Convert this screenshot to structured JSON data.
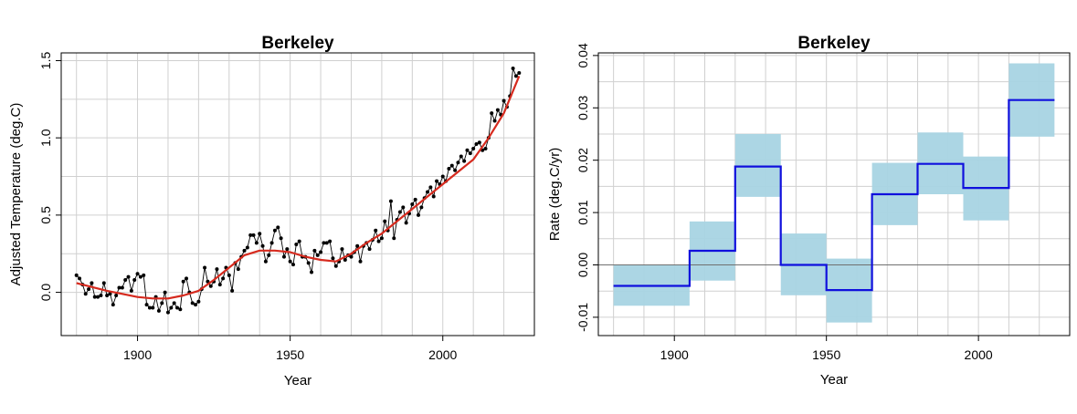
{
  "chart_data": [
    {
      "type": "line",
      "title": "Berkeley",
      "xlabel": "Year",
      "ylabel": "Adjusted Temperature (deg.C)",
      "xlim": [
        1875,
        2030
      ],
      "ylim": [
        -0.28,
        1.55
      ],
      "xticks": [
        1900,
        1950,
        2000
      ],
      "yticks": [
        0.0,
        0.5,
        1.0,
        1.5
      ],
      "xtick_labels": [
        "1900",
        "1950",
        "2000"
      ],
      "ytick_labels": [
        "0.0",
        "0.5",
        "1.0",
        "1.5"
      ],
      "grid": true,
      "colors": {
        "annual": "#000000",
        "trend": "#d62a1e"
      },
      "series": [
        {
          "style": "line-with-points",
          "x": [
            1880,
            1881,
            1882,
            1883,
            1884,
            1885,
            1886,
            1887,
            1888,
            1889,
            1890,
            1891,
            1892,
            1893,
            1894,
            1895,
            1896,
            1897,
            1898,
            1899,
            1900,
            1901,
            1902,
            1903,
            1904,
            1905,
            1906,
            1907,
            1908,
            1909,
            1910,
            1911,
            1912,
            1913,
            1914,
            1915,
            1916,
            1917,
            1918,
            1919,
            1920,
            1921,
            1922,
            1923,
            1924,
            1925,
            1926,
            1927,
            1928,
            1929,
            1930,
            1931,
            1932,
            1933,
            1934,
            1935,
            1936,
            1937,
            1938,
            1939,
            1940,
            1941,
            1942,
            1943,
            1944,
            1945,
            1946,
            1947,
            1948,
            1949,
            1950,
            1951,
            1952,
            1953,
            1954,
            1955,
            1956,
            1957,
            1958,
            1959,
            1960,
            1961,
            1962,
            1963,
            1964,
            1965,
            1966,
            1967,
            1968,
            1969,
            1970,
            1971,
            1972,
            1973,
            1974,
            1975,
            1976,
            1977,
            1978,
            1979,
            1980,
            1981,
            1982,
            1983,
            1984,
            1985,
            1986,
            1987,
            1988,
            1989,
            1990,
            1991,
            1992,
            1993,
            1994,
            1995,
            1996,
            1997,
            1998,
            1999,
            2000,
            2001,
            2002,
            2003,
            2004,
            2005,
            2006,
            2007,
            2008,
            2009,
            2010,
            2011,
            2012,
            2013,
            2014,
            2015,
            2016,
            2017,
            2018,
            2019,
            2020,
            2021,
            2022,
            2023,
            2024,
            2025
          ],
          "y": [
            0.11,
            0.09,
            0.05,
            -0.01,
            0.02,
            0.06,
            -0.03,
            -0.03,
            -0.02,
            0.06,
            -0.02,
            -0.01,
            -0.08,
            -0.02,
            0.03,
            0.03,
            0.08,
            0.1,
            0.01,
            0.08,
            0.12,
            0.1,
            0.11,
            -0.08,
            -0.1,
            -0.1,
            -0.03,
            -0.12,
            -0.07,
            0.0,
            -0.13,
            -0.1,
            -0.07,
            -0.1,
            -0.11,
            0.07,
            0.09,
            0.0,
            -0.07,
            -0.08,
            -0.06,
            0.02,
            0.16,
            0.07,
            0.04,
            0.07,
            0.15,
            0.05,
            0.09,
            0.16,
            0.11,
            0.01,
            0.19,
            0.15,
            0.23,
            0.27,
            0.29,
            0.37,
            0.37,
            0.32,
            0.38,
            0.3,
            0.2,
            0.24,
            0.32,
            0.4,
            0.42,
            0.35,
            0.23,
            0.28,
            0.2,
            0.18,
            0.31,
            0.33,
            0.23,
            0.23,
            0.19,
            0.13,
            0.27,
            0.24,
            0.26,
            0.32,
            0.32,
            0.33,
            0.22,
            0.17,
            0.2,
            0.28,
            0.21,
            0.24,
            0.23,
            0.26,
            0.3,
            0.2,
            0.3,
            0.32,
            0.28,
            0.34,
            0.4,
            0.33,
            0.35,
            0.46,
            0.4,
            0.59,
            0.35,
            0.47,
            0.52,
            0.55,
            0.45,
            0.51,
            0.57,
            0.6,
            0.5,
            0.55,
            0.61,
            0.65,
            0.68,
            0.62,
            0.72,
            0.7,
            0.75,
            0.72,
            0.8,
            0.82,
            0.79,
            0.84,
            0.88,
            0.85,
            0.92,
            0.9,
            0.93,
            0.96,
            0.97,
            0.92,
            0.93,
            1.0,
            1.16,
            1.11,
            1.18,
            1.15,
            1.24,
            1.2,
            1.27,
            1.45,
            1.4,
            1.42
          ]
        },
        {
          "style": "smooth-trend",
          "x": [
            1880,
            1890,
            1900,
            1905,
            1910,
            1915,
            1920,
            1925,
            1930,
            1935,
            1940,
            1945,
            1950,
            1955,
            1960,
            1965,
            1970,
            1975,
            1980,
            1985,
            1990,
            1995,
            2000,
            2005,
            2010,
            2015,
            2020,
            2025
          ],
          "y": [
            0.06,
            0.01,
            -0.03,
            -0.04,
            -0.04,
            -0.02,
            0.01,
            0.08,
            0.16,
            0.24,
            0.27,
            0.27,
            0.26,
            0.23,
            0.21,
            0.2,
            0.25,
            0.32,
            0.38,
            0.46,
            0.54,
            0.62,
            0.7,
            0.78,
            0.86,
            1.0,
            1.16,
            1.4
          ]
        }
      ]
    },
    {
      "type": "step",
      "title": "Berkeley",
      "xlabel": "Year",
      "ylabel": "Rate (deg.C/yr)",
      "xlim": [
        1875,
        2030
      ],
      "ylim": [
        -0.0135,
        0.0405
      ],
      "xticks": [
        1900,
        1950,
        2000
      ],
      "yticks": [
        -0.01,
        0.0,
        0.01,
        0.02,
        0.03,
        0.04
      ],
      "xtick_labels": [
        "1900",
        "1950",
        "2000"
      ],
      "ytick_labels": [
        "-0.01",
        "0.00",
        "0.01",
        "0.02",
        "0.03",
        "0.04"
      ],
      "grid": true,
      "zero_line": true,
      "colors": {
        "rate": "#1010dd",
        "band": "#a8d4e3"
      },
      "segments": [
        {
          "start": 1880,
          "end": 1905,
          "rate": -0.004,
          "lower": -0.0078,
          "upper": 0.0
        },
        {
          "start": 1905,
          "end": 1920,
          "rate": 0.0027,
          "lower": -0.003,
          "upper": 0.0083
        },
        {
          "start": 1920,
          "end": 1935,
          "rate": 0.0188,
          "lower": 0.013,
          "upper": 0.025
        },
        {
          "start": 1935,
          "end": 1950,
          "rate": 0.0,
          "lower": -0.0058,
          "upper": 0.006
        },
        {
          "start": 1950,
          "end": 1965,
          "rate": -0.0048,
          "lower": -0.011,
          "upper": 0.0012
        },
        {
          "start": 1965,
          "end": 1980,
          "rate": 0.0135,
          "lower": 0.0076,
          "upper": 0.0195
        },
        {
          "start": 1980,
          "end": 1995,
          "rate": 0.0193,
          "lower": 0.0135,
          "upper": 0.0253
        },
        {
          "start": 1995,
          "end": 2010,
          "rate": 0.0147,
          "lower": 0.0085,
          "upper": 0.0207
        },
        {
          "start": 2010,
          "end": 2025,
          "rate": 0.0315,
          "lower": 0.0245,
          "upper": 0.0385
        }
      ]
    }
  ]
}
